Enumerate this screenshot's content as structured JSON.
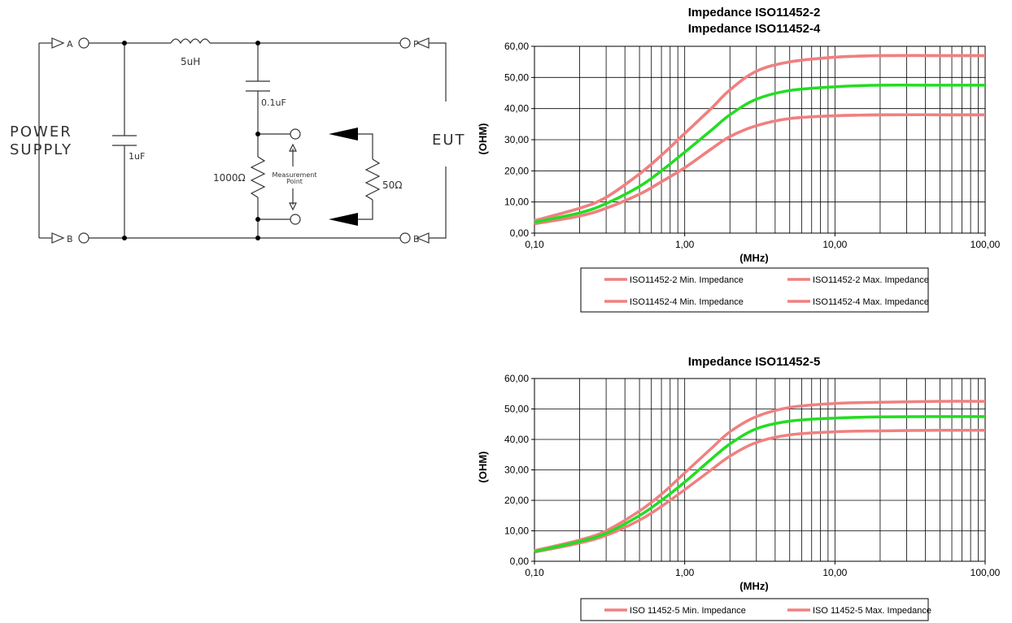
{
  "circuit": {
    "terminal_a": "A",
    "terminal_b_left": "B",
    "terminal_p": "P",
    "terminal_b_right": "B",
    "inductor": "5uH",
    "capacitor_top": "0.1uF",
    "capacitor_supply": "1uF",
    "resistor_main": "1000Ω",
    "resistor_load": "50Ω",
    "measurement_line1": "Measurement",
    "measurement_line2": "Point",
    "power_line1": "POWER",
    "power_line2": "SUPPLY",
    "eut": "EUT",
    "colors": {
      "wire": "#333333"
    }
  },
  "chart_data": [
    {
      "type": "line",
      "title": "Impedance ISO11452-2",
      "subtitle": "Impedance ISO11452-4",
      "xlabel": "(MHz)",
      "ylabel": "(OHM)",
      "xscale": "log",
      "xlim": [
        0.1,
        100
      ],
      "ylim": [
        0,
        60
      ],
      "xticks": [
        "0,10",
        "1,00",
        "10,00",
        "100,00"
      ],
      "yticks": [
        "0,00",
        "10,00",
        "20,00",
        "30,00",
        "40,00",
        "50,00",
        "60,00"
      ],
      "grid": true,
      "legend_position": "bottom",
      "series": [
        {
          "name": "ISO11452-2 Min. Impedance",
          "color": "#f08080",
          "x": [
            0.1,
            0.2,
            0.3,
            0.5,
            0.7,
            1.0,
            1.5,
            2.0,
            3.0,
            5.0,
            10,
            20,
            50,
            100
          ],
          "y": [
            3.0,
            5.5,
            8.0,
            12.5,
            16.5,
            21.0,
            27.0,
            31.0,
            34.5,
            36.8,
            37.7,
            38.0,
            38.0,
            38.0
          ]
        },
        {
          "name": "ISO11452-2 Max. Impedance",
          "color": "#f08080",
          "x": [
            0.1,
            0.2,
            0.3,
            0.5,
            0.7,
            1.0,
            1.5,
            2.0,
            3.0,
            5.0,
            10,
            20,
            50,
            100
          ],
          "y": [
            4.0,
            8.0,
            11.5,
            19.0,
            25.0,
            32.0,
            40.0,
            46.0,
            52.0,
            55.0,
            56.5,
            57.0,
            57.0,
            57.0
          ]
        },
        {
          "name": "ISO11452-4 Min. Impedance",
          "color": "#f08080",
          "x": [
            0.1,
            0.2,
            0.3,
            0.5,
            0.7,
            1.0,
            1.5,
            2.0,
            3.0,
            5.0,
            10,
            20,
            50,
            100
          ],
          "y": [
            3.0,
            5.5,
            8.0,
            12.5,
            16.5,
            21.0,
            27.0,
            31.0,
            34.5,
            36.8,
            37.7,
            38.0,
            38.0,
            38.0
          ]
        },
        {
          "name": "ISO11452-4 Max. Impedance",
          "color": "#f08080",
          "x": [
            0.1,
            0.2,
            0.3,
            0.5,
            0.7,
            1.0,
            1.5,
            2.0,
            3.0,
            5.0,
            10,
            20,
            50,
            100
          ],
          "y": [
            4.0,
            8.0,
            11.5,
            19.0,
            25.0,
            32.0,
            40.0,
            46.0,
            52.0,
            55.0,
            56.5,
            57.0,
            57.0,
            57.0
          ]
        },
        {
          "name": "",
          "color": "#22dd22",
          "x": [
            0.1,
            0.2,
            0.3,
            0.5,
            0.7,
            1.0,
            1.5,
            2.0,
            3.0,
            5.0,
            10,
            20,
            50,
            100
          ],
          "y": [
            3.5,
            6.5,
            9.5,
            15.0,
            20.0,
            26.0,
            33.0,
            38.0,
            43.0,
            45.8,
            47.0,
            47.5,
            47.5,
            47.5
          ]
        }
      ],
      "legend": [
        {
          "label": "ISO11452-2 Min. Impedance",
          "color": "#f08080"
        },
        {
          "label": "ISO11452-2 Max. Impedance",
          "color": "#f08080"
        },
        {
          "label": "ISO11452-4 Min. Impedance",
          "color": "#f08080"
        },
        {
          "label": "ISO11452-4 Max. Impedance",
          "color": "#f08080"
        }
      ]
    },
    {
      "type": "line",
      "title": "Impedance ISO11452-5",
      "subtitle": "",
      "xlabel": "(MHz)",
      "ylabel": "(OHM)",
      "xscale": "log",
      "xlim": [
        0.1,
        100
      ],
      "ylim": [
        0,
        60
      ],
      "xticks": [
        "0,10",
        "1,00",
        "10,00",
        "100,00"
      ],
      "yticks": [
        "0,00",
        "10,00",
        "20,00",
        "30,00",
        "40,00",
        "50,00",
        "60,00"
      ],
      "grid": true,
      "legend_position": "bottom",
      "series": [
        {
          "name": "ISO 11452-5 Min. Impedance",
          "color": "#f08080",
          "x": [
            0.1,
            0.2,
            0.3,
            0.5,
            0.7,
            1.0,
            1.5,
            2.0,
            3.0,
            5.0,
            10,
            20,
            50,
            100
          ],
          "y": [
            3.0,
            6.0,
            8.5,
            13.5,
            18.0,
            23.5,
            30.0,
            34.5,
            39.0,
            41.5,
            42.5,
            42.8,
            43.0,
            43.0
          ]
        },
        {
          "name": "ISO 11452-5 Max. Impedance",
          "color": "#f08080",
          "x": [
            0.1,
            0.2,
            0.3,
            0.5,
            0.7,
            1.0,
            1.5,
            2.0,
            3.0,
            5.0,
            10,
            20,
            50,
            100
          ],
          "y": [
            3.5,
            7.0,
            10.0,
            16.5,
            22.0,
            29.0,
            37.0,
            42.5,
            47.5,
            50.5,
            51.8,
            52.2,
            52.5,
            52.5
          ]
        },
        {
          "name": "",
          "color": "#22dd22",
          "x": [
            0.1,
            0.2,
            0.3,
            0.5,
            0.7,
            1.0,
            1.5,
            2.0,
            3.0,
            5.0,
            10,
            20,
            50,
            100
          ],
          "y": [
            3.2,
            6.5,
            9.2,
            15.0,
            20.0,
            26.0,
            33.5,
            38.5,
            43.5,
            46.0,
            47.0,
            47.4,
            47.5,
            47.5
          ]
        }
      ],
      "legend": [
        {
          "label": "ISO 11452-5 Min. Impedance",
          "color": "#f08080"
        },
        {
          "label": "ISO 11452-5 Max. Impedance",
          "color": "#f08080"
        }
      ]
    }
  ]
}
